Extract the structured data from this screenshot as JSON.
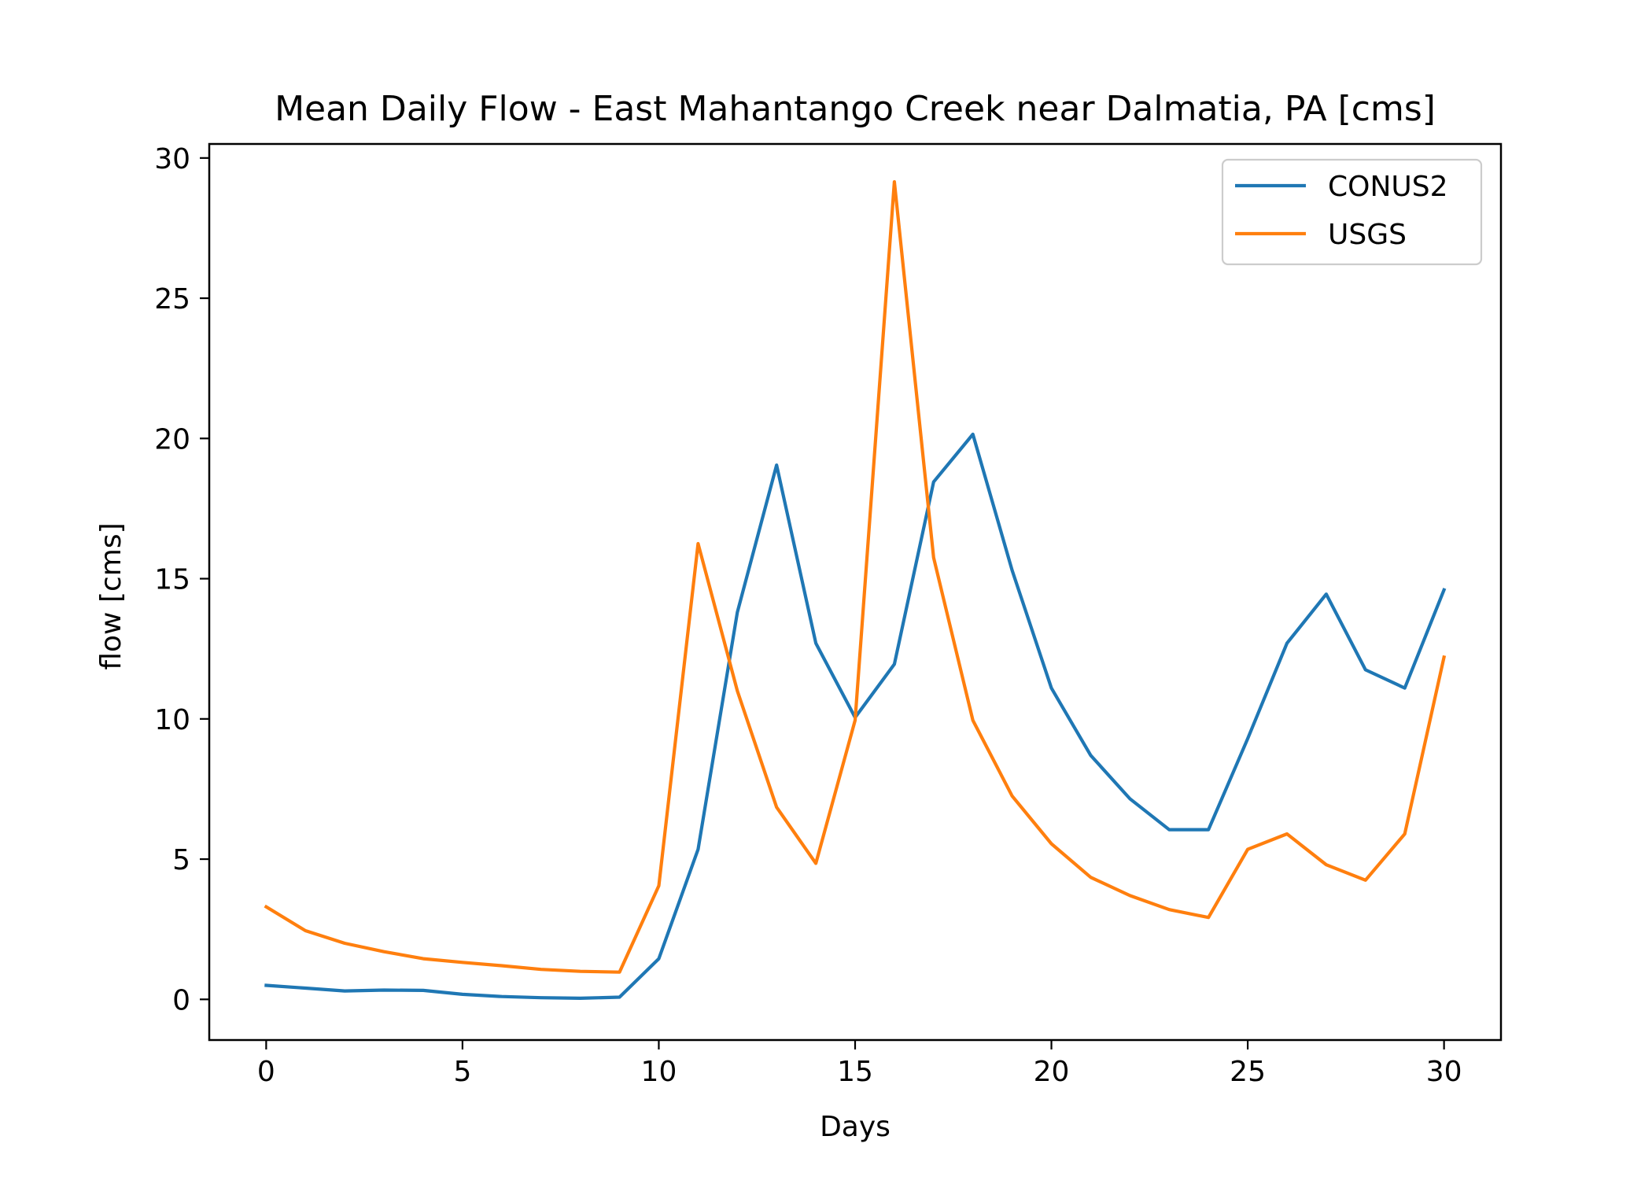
{
  "chart_data": {
    "type": "line",
    "title": "Mean Daily Flow - East Mahantango Creek near Dalmatia, PA [cms]",
    "xlabel": "Days",
    "ylabel": "flow [cms]",
    "xlim": [
      -1.45,
      31.45
    ],
    "ylim": [
      -1.45,
      30.5
    ],
    "xticks": [
      0,
      5,
      10,
      15,
      20,
      25,
      30
    ],
    "yticks": [
      0,
      5,
      10,
      15,
      20,
      25,
      30
    ],
    "grid": false,
    "legend_position": "top-right",
    "x": [
      0,
      1,
      2,
      3,
      4,
      5,
      6,
      7,
      8,
      9,
      10,
      11,
      12,
      13,
      14,
      15,
      16,
      17,
      18,
      19,
      20,
      21,
      22,
      23,
      24,
      25,
      26,
      27,
      28,
      29,
      30
    ],
    "series": [
      {
        "name": "CONUS2",
        "color": "#1f77b4",
        "values": [
          0.5,
          0.4,
          0.3,
          0.33,
          0.32,
          0.18,
          0.1,
          0.06,
          0.04,
          0.08,
          1.45,
          5.35,
          13.8,
          19.05,
          12.7,
          10.05,
          11.95,
          18.45,
          20.15,
          15.3,
          11.1,
          8.7,
          7.15,
          6.05,
          6.05,
          9.3,
          12.7,
          14.45,
          11.75,
          11.1,
          14.6
        ]
      },
      {
        "name": "USGS",
        "color": "#ff7f0e",
        "values": [
          3.3,
          2.45,
          2.0,
          1.7,
          1.45,
          1.32,
          1.2,
          1.07,
          1.0,
          0.97,
          4.05,
          16.25,
          11.0,
          6.85,
          4.85,
          9.95,
          29.15,
          15.75,
          9.95,
          7.25,
          5.55,
          4.35,
          3.7,
          3.2,
          2.92,
          5.35,
          5.9,
          4.8,
          4.25,
          5.9,
          12.2
        ]
      }
    ]
  }
}
